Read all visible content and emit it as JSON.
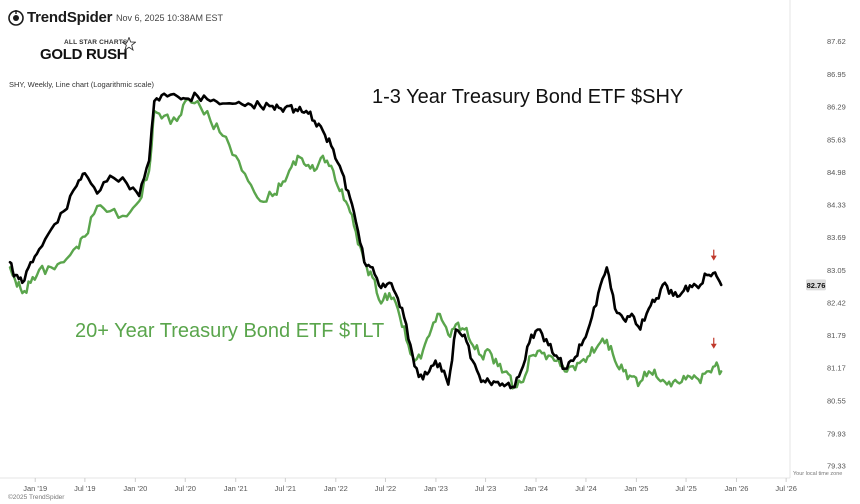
{
  "header": {
    "brand": "TrendSpider",
    "timestamp": "Nov 6, 2025 10:38AM EST",
    "badge_top": "ALL STAR CHARTS",
    "badge_main": "GOLD RUSH",
    "subtitle": "SHY, Weekly, Line chart (Logarithmic scale)"
  },
  "footer": {
    "copyright": "©2025 TrendSpider",
    "timezone_note": "Your local time zone"
  },
  "colors": {
    "shy": "#000000",
    "tlt": "#5aa54c",
    "arrow": "#c0392b",
    "price_badge": "#dddddd"
  },
  "chart_data": {
    "type": "line",
    "scale": "log",
    "grid": false,
    "yaxis_position": "right",
    "ylim": [
      79.1,
      87.85
    ],
    "yticks": [
      "87.62",
      "86.95",
      "86.29",
      "85.63",
      "84.98",
      "84.33",
      "83.69",
      "83.05",
      "82.42",
      "81.79",
      "81.17",
      "80.55",
      "79.93",
      "79.33"
    ],
    "last_price_label": "82.76",
    "xticks": [
      "Jan '19",
      "Jul '19",
      "Jan '20",
      "Jul '20",
      "Jan '21",
      "Jul '21",
      "Jan '22",
      "Jul '22",
      "Jan '23",
      "Jul '23",
      "Jan '24",
      "Jul '24",
      "Jan '25",
      "Jul '25",
      "Jan '26",
      "Jul '26"
    ],
    "xlim": [
      "2018-10-01",
      "2026-07-15"
    ],
    "series": [
      {
        "name": "1-3 Year Treasury Bond ETF $SHY",
        "color": "#000000",
        "points": [
          [
            "2018-10-01",
            83.2
          ],
          [
            "2018-10-20",
            82.95
          ],
          [
            "2018-11-15",
            82.8
          ],
          [
            "2018-12-15",
            83.2
          ],
          [
            "2019-01-15",
            83.45
          ],
          [
            "2019-03-01",
            83.85
          ],
          [
            "2019-04-15",
            84.2
          ],
          [
            "2019-06-01",
            84.7
          ],
          [
            "2019-07-01",
            84.95
          ],
          [
            "2019-08-15",
            84.55
          ],
          [
            "2019-10-01",
            84.9
          ],
          [
            "2019-12-01",
            84.75
          ],
          [
            "2020-01-15",
            84.5
          ],
          [
            "2020-02-20",
            85.2
          ],
          [
            "2020-03-10",
            86.4
          ],
          [
            "2020-04-15",
            86.55
          ],
          [
            "2020-06-01",
            86.5
          ],
          [
            "2020-07-01",
            86.45
          ],
          [
            "2020-08-15",
            86.5
          ],
          [
            "2020-10-01",
            86.4
          ],
          [
            "2020-11-15",
            86.35
          ],
          [
            "2021-01-01",
            86.35
          ],
          [
            "2021-02-15",
            86.35
          ],
          [
            "2021-04-01",
            86.3
          ],
          [
            "2021-05-15",
            86.3
          ],
          [
            "2021-06-15",
            86.25
          ],
          [
            "2021-07-15",
            86.3
          ],
          [
            "2021-08-15",
            86.2
          ],
          [
            "2021-09-15",
            86.2
          ],
          [
            "2021-10-15",
            86.0
          ],
          [
            "2021-11-15",
            85.8
          ],
          [
            "2021-12-15",
            85.5
          ],
          [
            "2022-01-15",
            85.1
          ],
          [
            "2022-02-15",
            84.6
          ],
          [
            "2022-03-15",
            84.0
          ],
          [
            "2022-04-15",
            83.2
          ],
          [
            "2022-05-15",
            83.1
          ],
          [
            "2022-06-15",
            82.7
          ],
          [
            "2022-07-15",
            82.8
          ],
          [
            "2022-08-15",
            82.5
          ],
          [
            "2022-09-15",
            82.0
          ],
          [
            "2022-10-15",
            81.2
          ],
          [
            "2022-11-15",
            80.95
          ],
          [
            "2022-12-15",
            81.2
          ],
          [
            "2023-01-15",
            81.25
          ],
          [
            "2023-02-15",
            80.85
          ],
          [
            "2023-03-15",
            81.9
          ],
          [
            "2023-04-15",
            81.8
          ],
          [
            "2023-05-15",
            81.3
          ],
          [
            "2023-06-15",
            80.9
          ],
          [
            "2023-07-15",
            80.9
          ],
          [
            "2023-08-15",
            80.9
          ],
          [
            "2023-09-15",
            80.85
          ],
          [
            "2023-10-15",
            80.8
          ],
          [
            "2023-11-15",
            81.2
          ],
          [
            "2023-12-15",
            81.8
          ],
          [
            "2024-01-15",
            81.9
          ],
          [
            "2024-02-15",
            81.6
          ],
          [
            "2024-03-15",
            81.4
          ],
          [
            "2024-04-15",
            81.15
          ],
          [
            "2024-05-15",
            81.3
          ],
          [
            "2024-06-15",
            81.6
          ],
          [
            "2024-07-15",
            82.0
          ],
          [
            "2024-08-15",
            82.6
          ],
          [
            "2024-09-15",
            83.1
          ],
          [
            "2024-10-15",
            82.3
          ],
          [
            "2024-11-15",
            82.1
          ],
          [
            "2024-12-15",
            82.2
          ],
          [
            "2025-01-15",
            81.9
          ],
          [
            "2025-02-15",
            82.3
          ],
          [
            "2025-03-15",
            82.5
          ],
          [
            "2025-04-15",
            82.8
          ],
          [
            "2025-05-15",
            82.55
          ],
          [
            "2025-06-15",
            82.6
          ],
          [
            "2025-07-15",
            82.75
          ],
          [
            "2025-08-15",
            82.7
          ],
          [
            "2025-09-15",
            82.95
          ],
          [
            "2025-10-15",
            83.0
          ],
          [
            "2025-11-06",
            82.76
          ]
        ]
      },
      {
        "name": "20+ Year Treasury Bond ETF $TLT",
        "color": "#5aa54c",
        "points": [
          [
            "2018-10-01",
            83.1
          ],
          [
            "2018-10-20",
            82.85
          ],
          [
            "2018-11-15",
            82.6
          ],
          [
            "2018-12-15",
            82.8
          ],
          [
            "2019-01-15",
            83.05
          ],
          [
            "2019-03-01",
            83.1
          ],
          [
            "2019-04-15",
            83.2
          ],
          [
            "2019-06-01",
            83.5
          ],
          [
            "2019-07-01",
            83.7
          ],
          [
            "2019-08-15",
            84.3
          ],
          [
            "2019-10-01",
            84.2
          ],
          [
            "2019-12-01",
            84.1
          ],
          [
            "2020-01-15",
            84.4
          ],
          [
            "2020-02-20",
            85.0
          ],
          [
            "2020-03-10",
            86.2
          ],
          [
            "2020-04-15",
            86.1
          ],
          [
            "2020-06-01",
            86.0
          ],
          [
            "2020-07-01",
            86.4
          ],
          [
            "2020-08-15",
            86.4
          ],
          [
            "2020-10-01",
            86.0
          ],
          [
            "2020-11-15",
            85.7
          ],
          [
            "2021-01-01",
            85.3
          ],
          [
            "2021-02-15",
            84.8
          ],
          [
            "2021-04-01",
            84.4
          ],
          [
            "2021-05-15",
            84.5
          ],
          [
            "2021-06-15",
            84.7
          ],
          [
            "2021-07-15",
            85.0
          ],
          [
            "2021-08-15",
            85.3
          ],
          [
            "2021-09-15",
            85.1
          ],
          [
            "2021-10-15",
            85.0
          ],
          [
            "2021-11-15",
            85.3
          ],
          [
            "2021-12-15",
            85.1
          ],
          [
            "2022-01-15",
            84.6
          ],
          [
            "2022-02-15",
            84.3
          ],
          [
            "2022-03-15",
            83.8
          ],
          [
            "2022-04-15",
            83.2
          ],
          [
            "2022-05-15",
            82.9
          ],
          [
            "2022-06-15",
            82.4
          ],
          [
            "2022-07-15",
            82.6
          ],
          [
            "2022-08-15",
            82.3
          ],
          [
            "2022-09-15",
            81.7
          ],
          [
            "2022-10-15",
            81.3
          ],
          [
            "2022-11-15",
            81.5
          ],
          [
            "2022-12-15",
            81.9
          ],
          [
            "2023-01-15",
            82.2
          ],
          [
            "2023-02-15",
            81.8
          ],
          [
            "2023-03-15",
            82.0
          ],
          [
            "2023-04-15",
            81.9
          ],
          [
            "2023-05-15",
            81.6
          ],
          [
            "2023-06-15",
            81.4
          ],
          [
            "2023-07-15",
            81.5
          ],
          [
            "2023-08-15",
            81.2
          ],
          [
            "2023-09-15",
            81.1
          ],
          [
            "2023-10-15",
            80.8
          ],
          [
            "2023-11-15",
            80.9
          ],
          [
            "2023-12-15",
            81.4
          ],
          [
            "2024-01-15",
            81.5
          ],
          [
            "2024-02-15",
            81.4
          ],
          [
            "2024-03-15",
            81.3
          ],
          [
            "2024-04-15",
            81.1
          ],
          [
            "2024-05-15",
            81.2
          ],
          [
            "2024-06-15",
            81.3
          ],
          [
            "2024-07-15",
            81.4
          ],
          [
            "2024-08-15",
            81.6
          ],
          [
            "2024-09-15",
            81.7
          ],
          [
            "2024-10-15",
            81.3
          ],
          [
            "2024-11-15",
            81.1
          ],
          [
            "2024-12-15",
            81.0
          ],
          [
            "2025-01-15",
            80.9
          ],
          [
            "2025-02-15",
            81.1
          ],
          [
            "2025-03-15",
            81.0
          ],
          [
            "2025-04-15",
            80.9
          ],
          [
            "2025-05-15",
            80.9
          ],
          [
            "2025-06-15",
            80.9
          ],
          [
            "2025-07-15",
            81.0
          ],
          [
            "2025-08-15",
            80.95
          ],
          [
            "2025-09-15",
            81.1
          ],
          [
            "2025-10-15",
            81.2
          ],
          [
            "2025-11-06",
            81.1
          ]
        ]
      }
    ],
    "annotations": [
      {
        "text": "1-3 Year Treasury Bond ETF $SHY",
        "color": "#111111"
      },
      {
        "text": "20+ Year Treasury Bond ETF $TLT",
        "color": "#5aa54c"
      }
    ],
    "markers": [
      {
        "type": "down-arrow",
        "x": "2025-10-10",
        "y": 83.25,
        "color": "#c0392b"
      },
      {
        "type": "down-arrow",
        "x": "2025-10-10",
        "y": 81.55,
        "color": "#c0392b"
      }
    ]
  }
}
